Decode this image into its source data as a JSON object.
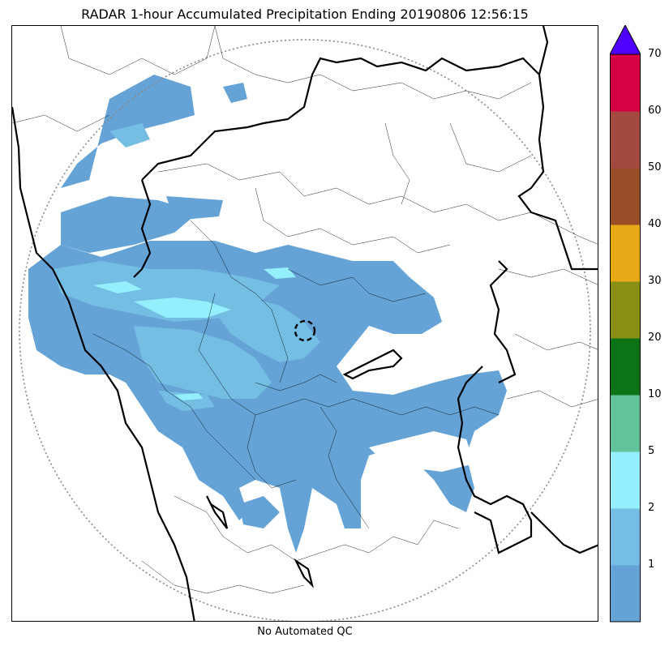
{
  "title": "RADAR 1-hour Accumulated Precipitation Ending 20190806 12:56:15",
  "footer": "No Automated QC",
  "colorbar": {
    "ticks": [
      "1",
      "2",
      "5",
      "10",
      "20",
      "30",
      "40",
      "50",
      "60",
      "70"
    ],
    "colors": [
      "#65a3d6",
      "#74bde3",
      "#94effd",
      "#62c29a",
      "#0d7317",
      "#888f14",
      "#e7a916",
      "#9a4e27",
      "#a3493f",
      "#d60044"
    ],
    "extend_color": "#5000ff"
  },
  "legend_levels_mm": [
    0,
    1,
    2,
    5,
    10,
    20,
    30,
    40,
    50,
    60,
    70
  ]
}
